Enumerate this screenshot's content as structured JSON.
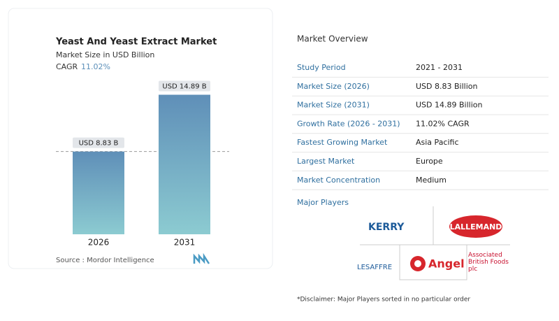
{
  "chart_data": {
    "type": "bar",
    "title": "Yeast And Yeast Extract Market",
    "subtitle": "Market Size in USD Billion",
    "cagr_label": "CAGR",
    "cagr_value": "11.02%",
    "categories": [
      "2026",
      "2031"
    ],
    "values": [
      8.83,
      14.89
    ],
    "value_labels": [
      "USD 8.83 B",
      "USD 14.89 B"
    ],
    "color_top": "#5f8fb8",
    "color_bottom": "#8ccbd1",
    "source": "Source : Mordor Intelligence"
  },
  "overview": {
    "title": "Market Overview",
    "rows": [
      [
        "Study Period",
        "2021 - 2031"
      ],
      [
        "Market Size (2026)",
        "USD 8.83 Billion"
      ],
      [
        "Market Size (2031)",
        "USD 14.89 Billion"
      ],
      [
        "Growth Rate (2026 - 2031)",
        "11.02% CAGR"
      ],
      [
        "Fastest Growing Market",
        "Asia Pacific"
      ],
      [
        "Largest Market",
        "Europe"
      ],
      [
        "Market Concentration",
        "Medium"
      ]
    ],
    "players_title": "Major Players",
    "players": [
      "KERRY",
      "LALLEMAND",
      "LESAFFRE",
      "Angel",
      "Associated British Foods plc"
    ],
    "disclaimer": "*Disclaimer: Major Players sorted in no particular order"
  }
}
